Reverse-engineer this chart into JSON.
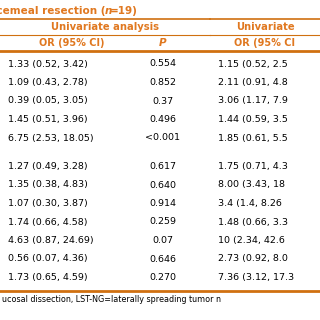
{
  "title_pre": "Piecemeal resection (",
  "title_italic": "n",
  "title_post": "=19)",
  "header1": "Univariate analysis",
  "header2": "Univariate",
  "subh_or1": "OR (95% CI)",
  "subh_p": "P",
  "subh_or2": "OR (95% CI",
  "rows_group1": [
    [
      "1.33 (0.52, 3.42)",
      "0.554",
      "1.15 (0.52, 2.5"
    ],
    [
      "1.09 (0.43, 2.78)",
      "0.852",
      "2.11 (0.91, 4.8"
    ],
    [
      "0.39 (0.05, 3.05)",
      "0.37",
      "3.06 (1.17, 7.9"
    ],
    [
      "1.45 (0.51, 3.96)",
      "0.496",
      "1.44 (0.59, 3.5"
    ],
    [
      "6.75 (2.53, 18.05)",
      "<0.001",
      "1.85 (0.61, 5.5"
    ]
  ],
  "rows_group2": [
    [
      "1.27 (0.49, 3.28)",
      "0.617",
      "1.75 (0.71, 4.3"
    ],
    [
      "1.35 (0.38, 4.83)",
      "0.640",
      "8.00 (3.43, 18"
    ],
    [
      "1.07 (0.30, 3.87)",
      "0.914",
      "3.4 (1.4, 8.26"
    ],
    [
      "1.74 (0.66, 4.58)",
      "0.259",
      "1.48 (0.66, 3.3"
    ],
    [
      "4.63 (0.87, 24.69)",
      "0.07",
      "10 (2.34, 42.6"
    ],
    [
      "0.56 (0.07, 4.36)",
      "0.646",
      "2.73 (0.92, 8.0"
    ],
    [
      "1.73 (0.65, 4.59)",
      "0.270",
      "7.36 (3.12, 17.3"
    ]
  ],
  "footer": "ucosal dissection, LST-NG=laterally spreading tumor n",
  "orange": "#E07820",
  "border_color": "#D07010"
}
